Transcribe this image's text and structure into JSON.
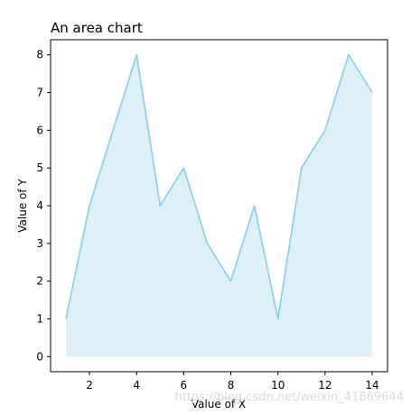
{
  "chart_data": {
    "type": "area",
    "title": "An area chart",
    "xlabel": "Value of X",
    "ylabel": "Value of Y",
    "x": [
      1,
      2,
      3,
      4,
      5,
      6,
      7,
      8,
      9,
      10,
      11,
      12,
      13,
      14
    ],
    "series": [
      {
        "values": [
          1,
          4,
          6,
          8,
          4,
          5,
          3,
          2,
          4,
          1,
          5,
          6,
          8,
          7
        ]
      }
    ],
    "xlim": [
      0.35,
      14.65
    ],
    "ylim": [
      -0.4,
      8.4
    ],
    "x_ticks": [
      2,
      4,
      6,
      8,
      10,
      12,
      14
    ],
    "y_ticks": [
      0,
      1,
      2,
      3,
      4,
      5,
      6,
      7,
      8
    ],
    "grid": false,
    "line_color": "#87ceeb",
    "fill_color": "#87ceeb",
    "fill_alpha": 0.3
  },
  "watermark": "https://blog.csdn.net/weixin_41869644"
}
